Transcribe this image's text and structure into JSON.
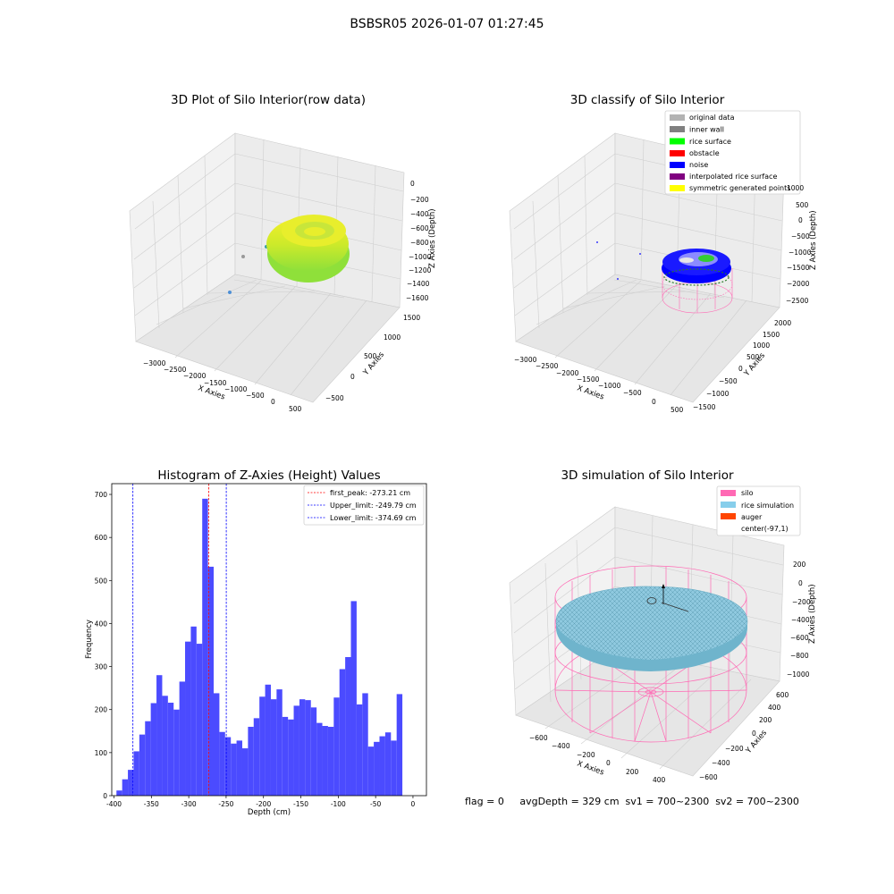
{
  "suptitle": "BSBSR05 2026-01-07 01:27:45",
  "panel_raw": {
    "title": "3D Plot of Silo Interior(row data)",
    "xlabel": "X Axies",
    "ylabel": "Y Axies",
    "zlabel": "Z Axies (Depth)",
    "xticks": [
      "−3000",
      "−2500",
      "−2000",
      "−1500",
      "−1000",
      "−500",
      "0",
      "500"
    ],
    "yticks": [
      "−500",
      "0",
      "500",
      "1000",
      "1500"
    ],
    "zticks": [
      "0",
      "−200",
      "−400",
      "−600",
      "−800",
      "−1000",
      "−1200",
      "−1400",
      "−1600"
    ]
  },
  "panel_classify": {
    "title": "3D classify of Silo Interior",
    "xlabel": "X Axies",
    "ylabel": "Y Axies",
    "zlabel": "Z Axies (Depth)",
    "xticks": [
      "−3000",
      "−2500",
      "−2000",
      "−1500",
      "−1000",
      "−500",
      "0",
      "500"
    ],
    "yticks": [
      "−1500",
      "−1000",
      "−500",
      "0",
      "500",
      "1000",
      "1500",
      "2000"
    ],
    "zticks": [
      "1000",
      "500",
      "0",
      "−500",
      "−1000",
      "−1500",
      "−2000",
      "−2500"
    ],
    "legend": [
      {
        "label": "original data",
        "color": "#b3b3b3"
      },
      {
        "label": "inner wall",
        "color": "#808080"
      },
      {
        "label": "rice surface",
        "color": "#00ff00"
      },
      {
        "label": "obstacle",
        "color": "#ff0000"
      },
      {
        "label": "noise",
        "color": "#0000ff"
      },
      {
        "label": "interpolated rice surface",
        "color": "#800080"
      },
      {
        "label": "symmetric generated points",
        "color": "#ffff00"
      }
    ]
  },
  "panel_sim": {
    "title": "3D simulation of Silo Interior",
    "xlabel": "X Axies",
    "ylabel": "Y Axies",
    "zlabel": "Z Axies (Depth)",
    "xticks": [
      "−600",
      "−400",
      "−200",
      "0",
      "200",
      "400"
    ],
    "yticks": [
      "−600",
      "−400",
      "−200",
      "0",
      "200",
      "400",
      "600"
    ],
    "zticks": [
      "200",
      "0",
      "−200",
      "−400",
      "−600",
      "−800",
      "−1000"
    ],
    "legend": [
      {
        "label": "silo",
        "color": "#ff69b4"
      },
      {
        "label": "rice simulation",
        "color": "#87ceeb"
      },
      {
        "label": "auger",
        "color": "#ff4500"
      },
      {
        "label": "center(-97,1)",
        "color": ""
      }
    ],
    "status": "flag = 0     avgDepth = 329 cm  sv1 = 700~2300  sv2 = 700~2300"
  },
  "chart_data": {
    "type": "bar",
    "title": "Histogram of Z-Axies (Height) Values",
    "xlabel": "Depth (cm)",
    "ylabel": "Frequency",
    "xlim": [
      -403,
      18
    ],
    "ylim": [
      0,
      725
    ],
    "bar_color": "#4b4bff",
    "bin_edges_start": -396.7,
    "bin_width": 7.65,
    "values": [
      12,
      38,
      60,
      103,
      142,
      173,
      215,
      280,
      232,
      216,
      200,
      265,
      358,
      393,
      353,
      690,
      532,
      238,
      148,
      136,
      121,
      128,
      110,
      160,
      180,
      230,
      258,
      224,
      247,
      183,
      177,
      209,
      224,
      222,
      205,
      169,
      162,
      160,
      228,
      294,
      322,
      452,
      212,
      238,
      114,
      125,
      138,
      147,
      128,
      236
    ],
    "xticks": [
      -400,
      -350,
      -300,
      -250,
      -200,
      -150,
      -100,
      -50,
      0
    ],
    "yticks": [
      0,
      100,
      200,
      300,
      400,
      500,
      600,
      700
    ],
    "vlines": [
      {
        "label": "first_peak: -273.21 cm",
        "x": -273.21,
        "color": "#ff0000"
      },
      {
        "label": "Upper_limit: -249.79 cm",
        "x": -249.79,
        "color": "#0000ff"
      },
      {
        "label": "Lower_limit: -374.69 cm",
        "x": -374.69,
        "color": "#0000ff"
      }
    ]
  }
}
